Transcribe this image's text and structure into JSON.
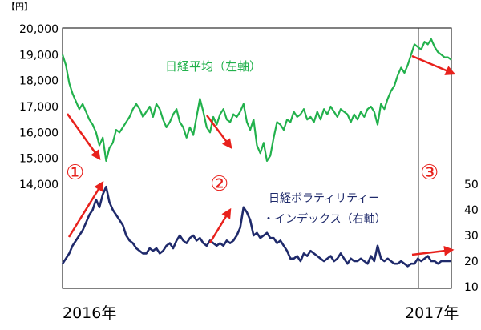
{
  "chart_data": {
    "type": "line",
    "unit_label": "【円】",
    "x_start_label": "2016年",
    "x_end_label": "2017年",
    "left_axis": {
      "ticks": [
        "20,000",
        "19,000",
        "18,000",
        "17,000",
        "16,000",
        "15,000",
        "14,000"
      ],
      "tick_values": [
        20000,
        19000,
        18000,
        17000,
        16000,
        15000,
        14000
      ],
      "ylim": [
        14000,
        20000
      ]
    },
    "right_axis": {
      "ticks": [
        "50",
        "40",
        "30",
        "20",
        "10"
      ],
      "tick_values": [
        50,
        40,
        30,
        20,
        10
      ],
      "ylim": [
        10,
        50
      ]
    },
    "divider_label": "2017年",
    "series": [
      {
        "name": "日経平均（左軸）",
        "axis": "left",
        "color": "#22b14c",
        "values": [
          19000,
          18600,
          17900,
          17500,
          17200,
          16900,
          17100,
          16800,
          16500,
          16300,
          16000,
          15500,
          15800,
          14900,
          15400,
          15600,
          16100,
          16000,
          16200,
          16400,
          16600,
          16900,
          17100,
          16900,
          16600,
          16800,
          17000,
          16600,
          17100,
          16900,
          16500,
          16200,
          16400,
          16700,
          16900,
          16400,
          16200,
          15800,
          16200,
          15900,
          16600,
          17300,
          16800,
          16200,
          16000,
          16600,
          16300,
          16700,
          16900,
          16500,
          16400,
          16700,
          16600,
          16800,
          17100,
          16400,
          16100,
          16500,
          15500,
          15200,
          15600,
          14900,
          15100,
          15800,
          16400,
          16300,
          16100,
          16500,
          16400,
          16800,
          16600,
          16700,
          16900,
          16500,
          16600,
          16400,
          16800,
          16500,
          16900,
          16700,
          17000,
          16800,
          16600,
          16900,
          16800,
          16700,
          16400,
          16700,
          16500,
          16800,
          16600,
          16900,
          17000,
          16800,
          16300,
          17100,
          16900,
          17300,
          17600,
          17800,
          18200,
          18500,
          18300,
          18600,
          19000,
          19400,
          19300,
          19200,
          19500,
          19400,
          19600,
          19300,
          19100,
          19000,
          18900,
          18900,
          18800
        ]
      },
      {
        "name": "日経ボラティリティー・インデックス（右軸）",
        "axis": "right",
        "color": "#1f2a6b",
        "values": [
          19,
          21,
          23,
          26,
          28,
          30,
          32,
          35,
          38,
          40,
          44,
          41,
          46,
          49,
          43,
          40,
          38,
          36,
          34,
          30,
          28,
          27,
          25,
          24,
          23,
          23,
          25,
          24,
          25,
          23,
          24,
          26,
          27,
          25,
          28,
          30,
          28,
          27,
          29,
          30,
          28,
          29,
          27,
          26,
          28,
          27,
          26,
          27,
          26,
          28,
          27,
          28,
          30,
          33,
          41,
          39,
          36,
          30,
          31,
          29,
          30,
          31,
          29,
          29,
          27,
          28,
          26,
          24,
          21,
          21,
          22,
          20,
          23,
          22,
          24,
          23,
          22,
          21,
          20,
          21,
          22,
          20,
          21,
          23,
          21,
          19,
          21,
          20,
          20,
          21,
          20,
          19,
          22,
          20,
          26,
          21,
          20,
          21,
          20,
          19,
          19,
          20,
          19,
          18,
          19,
          19,
          21,
          20,
          21,
          22,
          20,
          20,
          19,
          20,
          20,
          20,
          20
        ]
      }
    ],
    "annotations": [
      "①",
      "②",
      "③"
    ],
    "divider_index": 108,
    "grid": false,
    "legend": "inline-labels",
    "colors": {
      "nikkei": "#22b14c",
      "vi": "#1f2a6b",
      "arrow": "#e8211c",
      "annotation": "#e8211c",
      "axis": "#000000",
      "divider": "#333333"
    }
  }
}
